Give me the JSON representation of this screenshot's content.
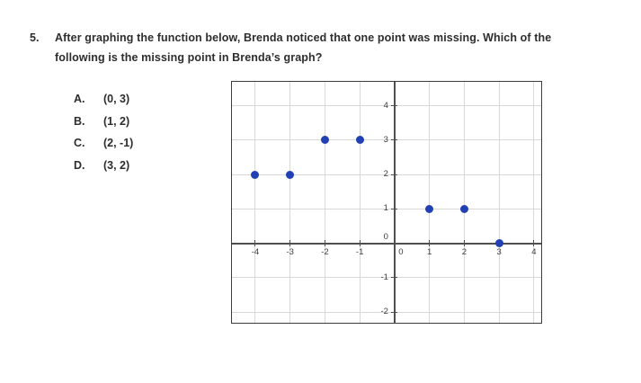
{
  "question": {
    "number": "5.",
    "lines": [
      "After graphing the function below, Brenda noticed that one point was missing. Which of the",
      "following is the missing point in Brenda’s graph?"
    ]
  },
  "choices": [
    {
      "letter": "A.",
      "text": "(0, 3)"
    },
    {
      "letter": "B.",
      "text": "(1, 2)"
    },
    {
      "letter": "C.",
      "text": "(2, -1)"
    },
    {
      "letter": "D.",
      "text": "(3, 2)"
    }
  ],
  "chart_data": {
    "type": "scatter",
    "title": "",
    "xlabel": "",
    "ylabel": "",
    "points": [
      [
        -4,
        2
      ],
      [
        -3,
        2
      ],
      [
        -2,
        3
      ],
      [
        -1,
        3
      ],
      [
        1,
        1
      ],
      [
        2,
        1
      ],
      [
        3,
        0
      ]
    ],
    "x_ticks": [
      -4,
      -3,
      -2,
      -1,
      0,
      1,
      2,
      3,
      4
    ],
    "y_ticks": [
      -2,
      -1,
      0,
      1,
      2,
      3,
      4
    ],
    "xlim": [
      -4.67,
      4.21
    ],
    "ylim": [
      -2.31,
      4.7
    ],
    "grid": true,
    "legend": "none",
    "point_color": "#2140b4",
    "grid_color": "#d8d8d8",
    "axis_color": "#4f4f4f",
    "tick_label_color": "#3d3d3d"
  }
}
